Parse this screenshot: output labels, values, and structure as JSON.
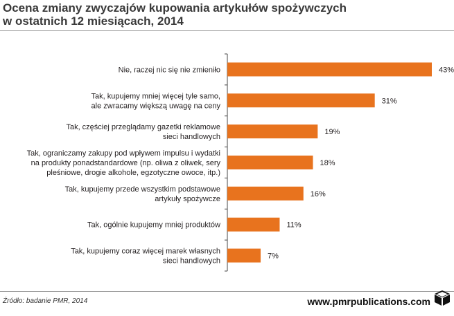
{
  "title_line1": "Ocena zmiany zwyczajów kupowania artykułów spożywczych",
  "title_line2": "w ostatnich 12 miesiącach, 2014",
  "source": "Źródło: badanie PMR, 2014",
  "website": "www.pmrpublications.com",
  "colors": {
    "bar": "#e8731e",
    "axis": "#444444",
    "text": "#231f20"
  },
  "chart_data": {
    "type": "bar",
    "orientation": "horizontal",
    "title": "Ocena zmiany zwyczajów kupowania artykułów spożywczych w ostatnich 12 miesiącach, 2014",
    "unit": "%",
    "xlim": [
      0,
      45
    ],
    "grid": false,
    "categories": [
      [
        "Nie, raczej nic się nie zmieniło"
      ],
      [
        "Tak, kupujemy mniej więcej tyle samo,",
        "ale zwracamy większą uwagę na ceny"
      ],
      [
        "Tak, częściej przeglądamy gazetki reklamowe",
        "sieci handlowych"
      ],
      [
        "Tak, ograniczamy zakupy pod wpływem impulsu i wydatki",
        "na produkty ponadstandardowe (np. oliwa z oliwek, sery",
        "pleśniowe, drogie alkohole, egzotyczne owoce, itp.)"
      ],
      [
        "Tak, kupujemy przede wszystkim podstawowe",
        "artykuły spożywcze"
      ],
      [
        "Tak, ogólnie kupujemy mniej produktów"
      ],
      [
        "Tak, kupujemy coraz więcej marek własnych",
        "sieci handlowych"
      ]
    ],
    "values": [
      43,
      31,
      19,
      18,
      16,
      11,
      7
    ],
    "data_labels": [
      "43%",
      "31%",
      "19%",
      "18%",
      "16%",
      "11%",
      "7%"
    ]
  }
}
